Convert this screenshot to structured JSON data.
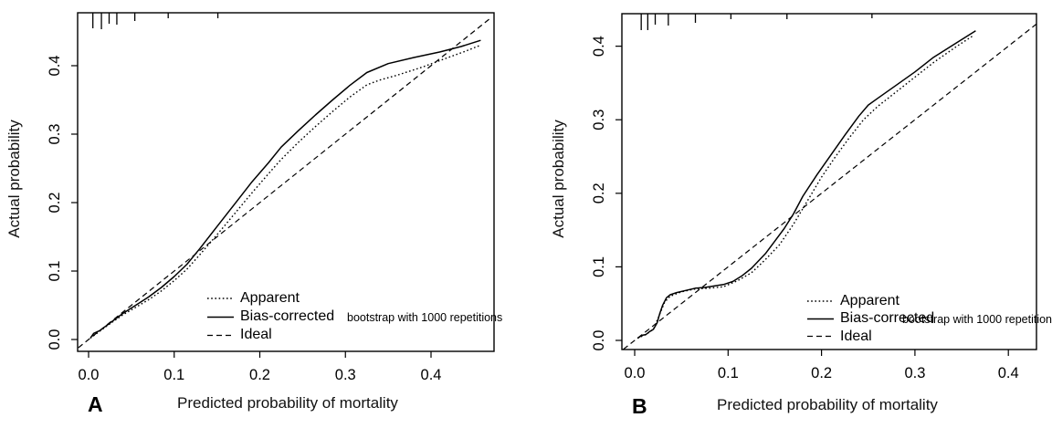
{
  "figure": {
    "background": "#ffffff",
    "line_color": "#000000",
    "text_color": "#000000"
  },
  "panels": [
    {
      "panel_label": "A",
      "x_title": "Predicted probability of mortality",
      "y_title": "Actual probability",
      "legend": {
        "apparent": "Apparent",
        "bias_corrected": "Bias-corrected",
        "ideal": "Ideal",
        "note": "bootstrap with 1000 repetitions"
      }
    },
    {
      "panel_label": "B",
      "x_title": "Predicted probability of mortality",
      "y_title": "Actual probability",
      "legend": {
        "apparent": "Apparent",
        "bias_corrected": "Bias-corrected",
        "ideal": "Ideal",
        "note": "bootstrap with 1000 repetitions"
      }
    }
  ],
  "chart_data": [
    {
      "type": "line",
      "panel": "A",
      "title": "",
      "xlabel": "Predicted probability of mortality",
      "ylabel": "Actual probability",
      "xlim": [
        -0.0128,
        0.4736
      ],
      "ylim": [
        -0.0173,
        0.4773
      ],
      "grid": false,
      "legend_position": "inside-bottom-right",
      "legend_note": "bootstrap with 1000 repetitions",
      "x_ticks": {
        "values": [
          0.0,
          0.1,
          0.2,
          0.3,
          0.4
        ],
        "labels": [
          "0.0",
          "0.1",
          "0.2",
          "0.3",
          "0.4"
        ]
      },
      "y_ticks": {
        "values": [
          0.0,
          0.1,
          0.2,
          0.3,
          0.4
        ],
        "labels": [
          "0.0",
          "0.1",
          "0.2",
          "0.3",
          "0.4"
        ]
      },
      "rug_x": [
        0.005,
        0.015,
        0.024,
        0.033,
        0.054,
        0.093,
        0.151
      ],
      "rug_len": [
        17,
        18,
        12,
        13,
        9,
        6,
        6
      ],
      "series": [
        {
          "name": "Apparent",
          "style": "dotted",
          "points": [
            [
              0.002,
              0.002
            ],
            [
              0.013,
              0.012
            ],
            [
              0.025,
              0.023
            ],
            [
              0.04,
              0.036
            ],
            [
              0.055,
              0.047
            ],
            [
              0.07,
              0.058
            ],
            [
              0.085,
              0.071
            ],
            [
              0.1,
              0.086
            ],
            [
              0.115,
              0.103
            ],
            [
              0.13,
              0.124
            ],
            [
              0.15,
              0.153
            ],
            [
              0.17,
              0.183
            ],
            [
              0.19,
              0.213
            ],
            [
              0.21,
              0.242
            ],
            [
              0.225,
              0.263
            ],
            [
              0.245,
              0.288
            ],
            [
              0.265,
              0.311
            ],
            [
              0.285,
              0.333
            ],
            [
              0.305,
              0.354
            ],
            [
              0.325,
              0.372
            ],
            [
              0.34,
              0.379
            ],
            [
              0.36,
              0.386
            ],
            [
              0.39,
              0.398
            ],
            [
              0.42,
              0.412
            ],
            [
              0.44,
              0.421
            ],
            [
              0.456,
              0.429
            ]
          ]
        },
        {
          "name": "Bias-corrected",
          "style": "solid",
          "points": [
            [
              0.002,
              0.002
            ],
            [
              0.006,
              0.009
            ],
            [
              0.013,
              0.013
            ],
            [
              0.025,
              0.024
            ],
            [
              0.04,
              0.038
            ],
            [
              0.055,
              0.05
            ],
            [
              0.07,
              0.062
            ],
            [
              0.085,
              0.076
            ],
            [
              0.1,
              0.092
            ],
            [
              0.115,
              0.11
            ],
            [
              0.13,
              0.133
            ],
            [
              0.15,
              0.165
            ],
            [
              0.17,
              0.197
            ],
            [
              0.19,
              0.229
            ],
            [
              0.21,
              0.258
            ],
            [
              0.225,
              0.281
            ],
            [
              0.245,
              0.305
            ],
            [
              0.265,
              0.328
            ],
            [
              0.285,
              0.35
            ],
            [
              0.305,
              0.371
            ],
            [
              0.325,
              0.39
            ],
            [
              0.35,
              0.403
            ],
            [
              0.38,
              0.412
            ],
            [
              0.41,
              0.42
            ],
            [
              0.435,
              0.428
            ],
            [
              0.458,
              0.437
            ]
          ]
        },
        {
          "name": "Ideal",
          "style": "dashed",
          "points": [
            [
              -0.012,
              -0.012
            ],
            [
              0.47,
              0.47
            ]
          ]
        }
      ]
    },
    {
      "type": "line",
      "panel": "B",
      "title": "",
      "xlabel": "Predicted probability of mortality",
      "ylabel": "Actual probability",
      "xlim": [
        -0.0137,
        0.4301
      ],
      "ylim": [
        -0.0124,
        0.4442
      ],
      "grid": false,
      "legend_position": "inside-bottom-right",
      "legend_note": "bootstrap with 1000 repetitions",
      "x_ticks": {
        "values": [
          0.0,
          0.1,
          0.2,
          0.3,
          0.4
        ],
        "labels": [
          "0.0",
          "0.1",
          "0.2",
          "0.3",
          "0.4"
        ]
      },
      "y_ticks": {
        "values": [
          0.0,
          0.1,
          0.2,
          0.3,
          0.4
        ],
        "labels": [
          "0.0",
          "0.1",
          "0.2",
          "0.3",
          "0.4"
        ]
      },
      "rug_x": [
        0.007,
        0.014,
        0.022,
        0.036,
        0.065,
        0.103,
        0.163,
        0.254
      ],
      "rug_len": [
        18,
        18,
        12,
        13,
        10,
        6,
        6,
        5
      ],
      "series": [
        {
          "name": "Apparent",
          "style": "dotted",
          "points": [
            [
              0.003,
              0.003
            ],
            [
              0.012,
              0.008
            ],
            [
              0.02,
              0.015
            ],
            [
              0.026,
              0.033
            ],
            [
              0.032,
              0.052
            ],
            [
              0.038,
              0.06
            ],
            [
              0.05,
              0.066
            ],
            [
              0.065,
              0.07
            ],
            [
              0.08,
              0.071
            ],
            [
              0.095,
              0.073
            ],
            [
              0.11,
              0.081
            ],
            [
              0.125,
              0.092
            ],
            [
              0.14,
              0.11
            ],
            [
              0.155,
              0.13
            ],
            [
              0.17,
              0.158
            ],
            [
              0.185,
              0.19
            ],
            [
              0.2,
              0.222
            ],
            [
              0.215,
              0.25
            ],
            [
              0.23,
              0.276
            ],
            [
              0.245,
              0.3
            ],
            [
              0.26,
              0.318
            ],
            [
              0.28,
              0.338
            ],
            [
              0.3,
              0.358
            ],
            [
              0.32,
              0.378
            ],
            [
              0.345,
              0.4
            ],
            [
              0.362,
              0.414
            ]
          ]
        },
        {
          "name": "Bias-corrected",
          "style": "solid",
          "points": [
            [
              0.003,
              0.003
            ],
            [
              0.008,
              0.007
            ],
            [
              0.012,
              0.008
            ],
            [
              0.016,
              0.012
            ],
            [
              0.02,
              0.015
            ],
            [
              0.024,
              0.024
            ],
            [
              0.027,
              0.037
            ],
            [
              0.03,
              0.048
            ],
            [
              0.034,
              0.058
            ],
            [
              0.038,
              0.062
            ],
            [
              0.045,
              0.065
            ],
            [
              0.055,
              0.068
            ],
            [
              0.065,
              0.071
            ],
            [
              0.075,
              0.072
            ],
            [
              0.085,
              0.074
            ],
            [
              0.095,
              0.076
            ],
            [
              0.105,
              0.08
            ],
            [
              0.115,
              0.088
            ],
            [
              0.125,
              0.098
            ],
            [
              0.14,
              0.118
            ],
            [
              0.15,
              0.135
            ],
            [
              0.16,
              0.152
            ],
            [
              0.17,
              0.172
            ],
            [
              0.18,
              0.196
            ],
            [
              0.195,
              0.225
            ],
            [
              0.21,
              0.252
            ],
            [
              0.225,
              0.279
            ],
            [
              0.24,
              0.305
            ],
            [
              0.25,
              0.32
            ],
            [
              0.26,
              0.329
            ],
            [
              0.28,
              0.347
            ],
            [
              0.3,
              0.365
            ],
            [
              0.32,
              0.385
            ],
            [
              0.345,
              0.405
            ],
            [
              0.365,
              0.421
            ]
          ]
        },
        {
          "name": "Ideal",
          "style": "dashed",
          "points": [
            [
              -0.012,
              -0.012
            ],
            [
              0.43,
              0.43
            ]
          ]
        }
      ]
    }
  ]
}
